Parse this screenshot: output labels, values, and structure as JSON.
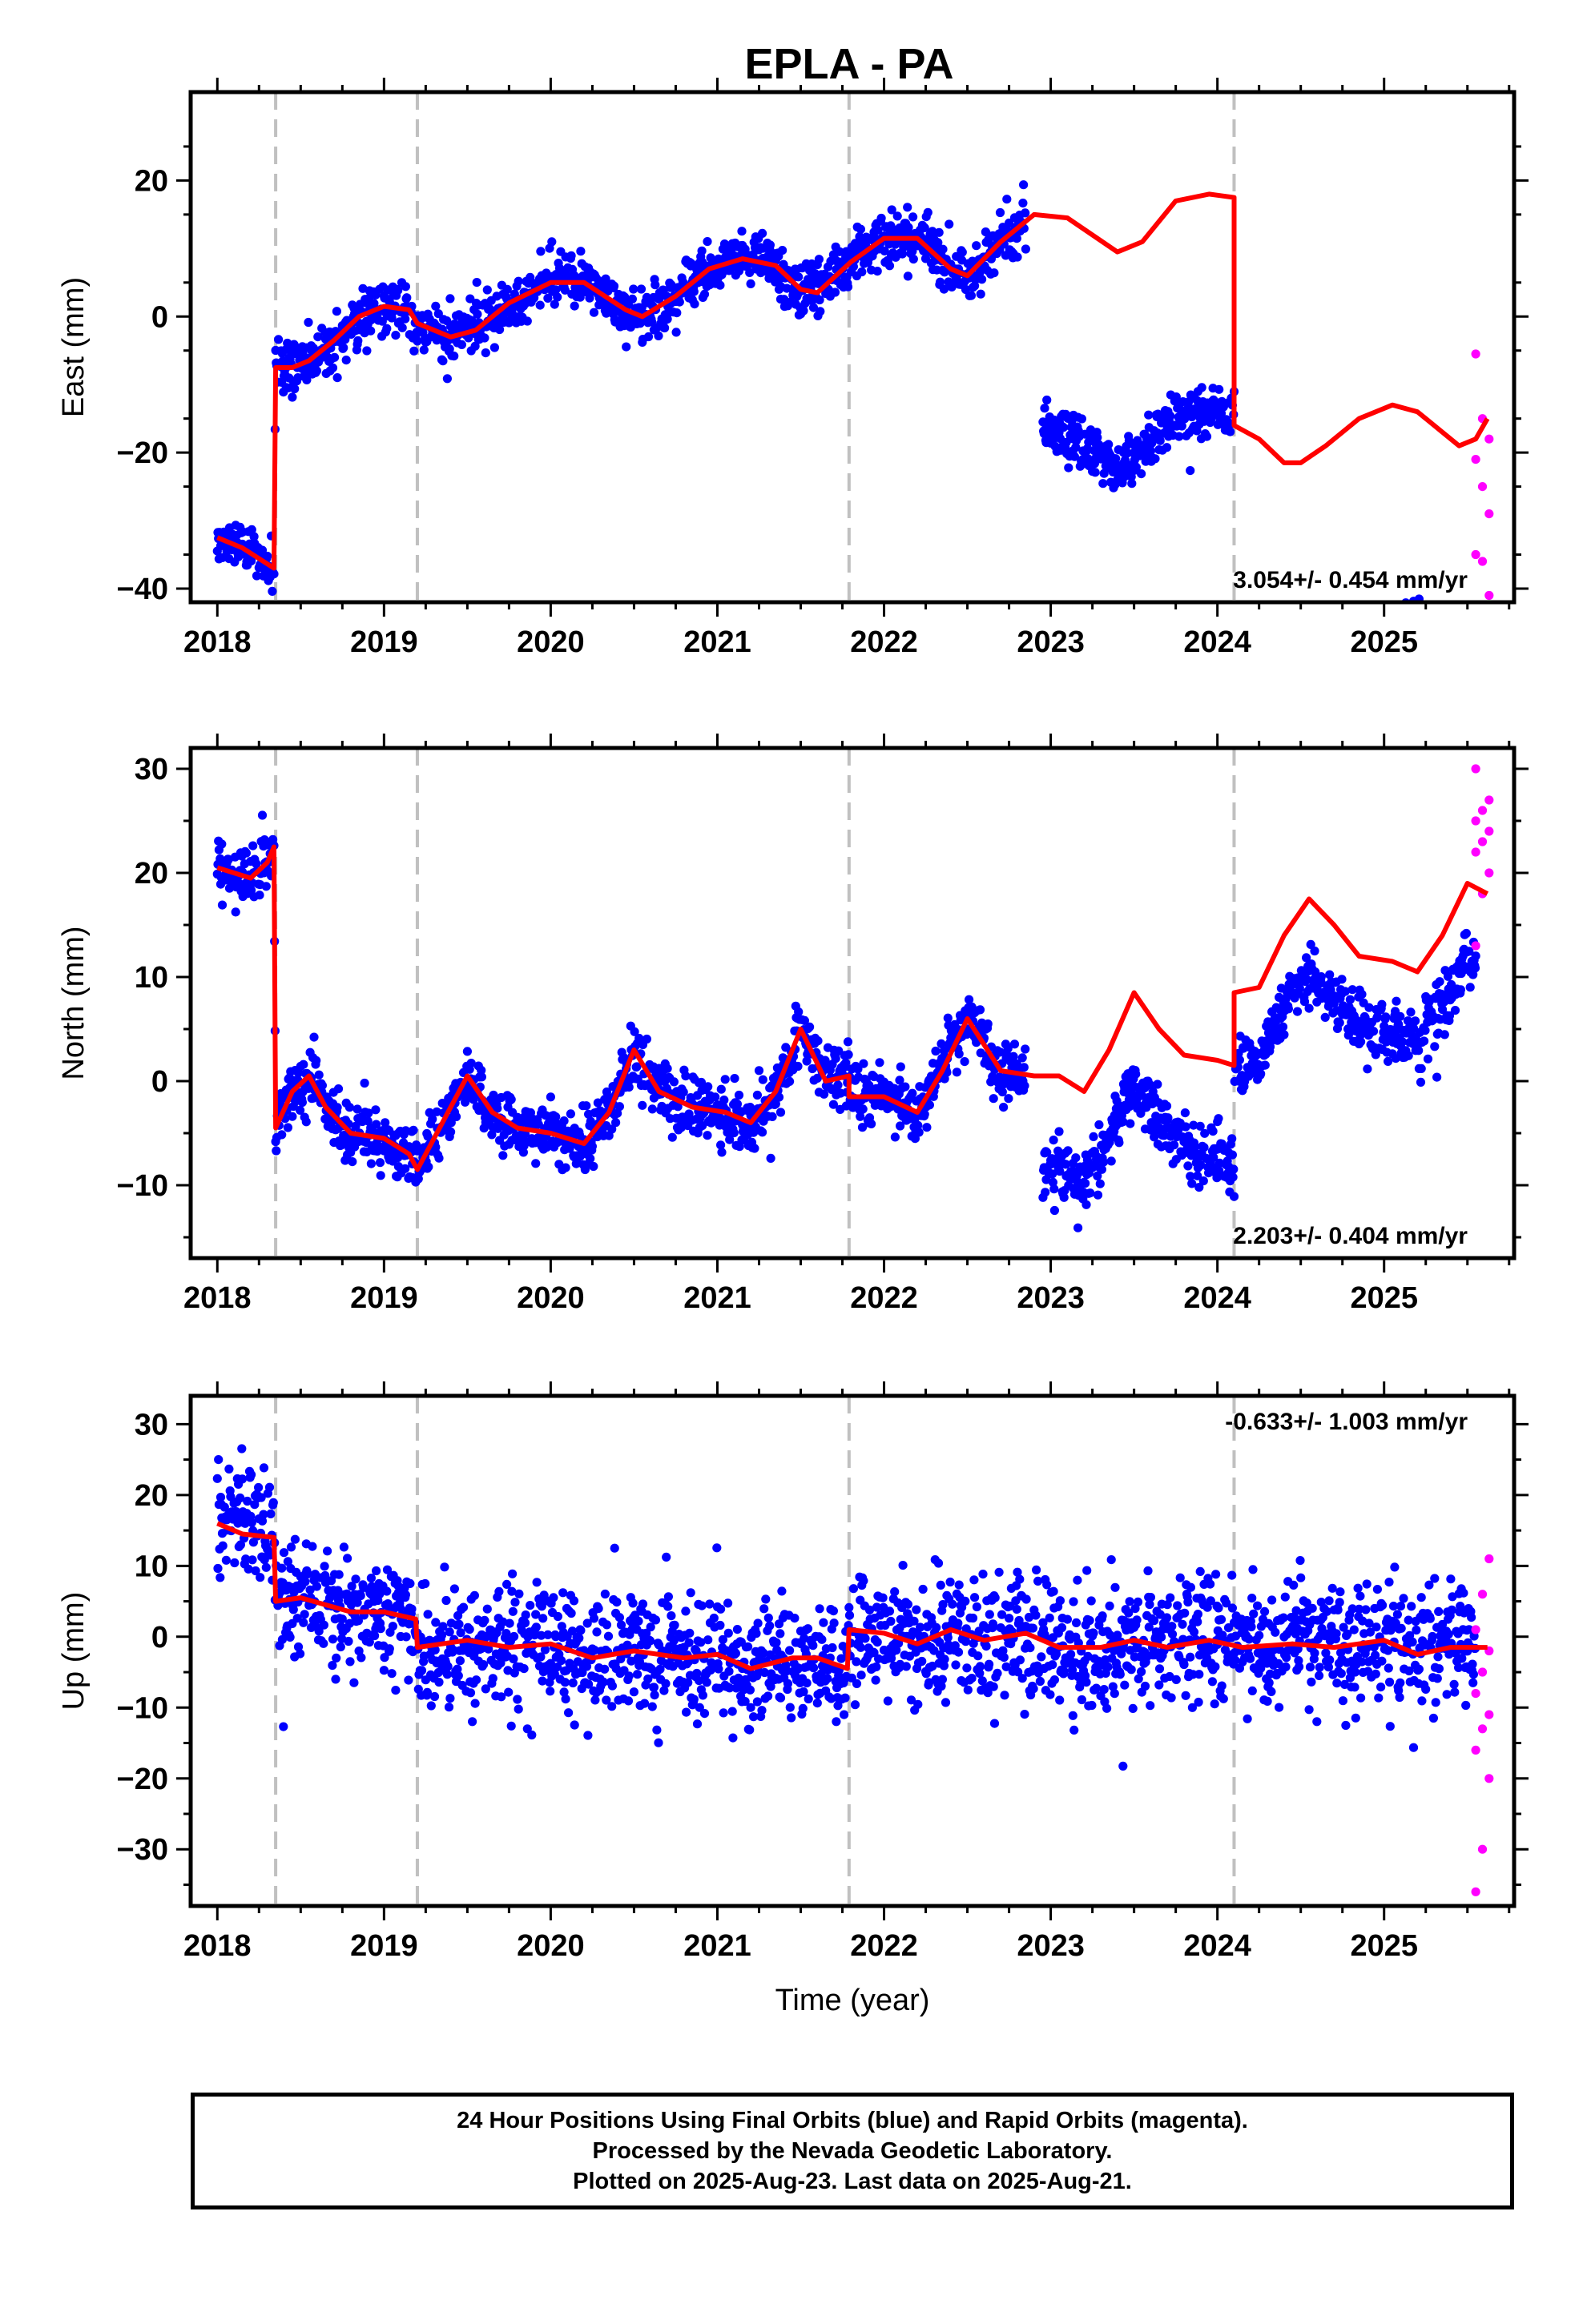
{
  "chart_data": {
    "type": "scatter",
    "title": "EPLA - PA",
    "xlabel": "Time (year)",
    "x_ticks": [
      2018,
      2019,
      2020,
      2021,
      2022,
      2023,
      2024,
      2025
    ],
    "xlim": [
      2017.84,
      2025.78
    ],
    "breaks": [
      2018.35,
      2019.2,
      2021.79,
      2024.1
    ],
    "last_final": 2025.55,
    "last_rapid": 2025.63,
    "colors": {
      "final": "#0000ff",
      "rapid": "#ff00ff",
      "model": "#ff0000",
      "breaks": "#c0c0c0"
    },
    "series_legend": [
      "Final Orbits (blue)",
      "Rapid Orbits (magenta)"
    ],
    "panels": [
      {
        "id": "east",
        "ylabel": "East (mm)",
        "ylim": [
          -42,
          33
        ],
        "y_ticks": [
          -40,
          -20,
          0,
          20
        ],
        "rate": "3.054+/- 0.454 mm/yr",
        "rate_pos": "bottom-right",
        "noise": 1.9,
        "gap": [
          2022.85,
          2022.95
        ],
        "data_offset": [
          [
            2022.95,
            -32
          ]
        ],
        "model": [
          [
            2018.0,
            -32.5
          ],
          [
            2018.15,
            -34
          ],
          [
            2018.34,
            -37
          ],
          [
            2018.35,
            -7.5
          ],
          [
            2018.45,
            -7.5
          ],
          [
            2018.55,
            -6.5
          ],
          [
            2018.7,
            -3.5
          ],
          [
            2018.85,
            0
          ],
          [
            2019.0,
            1.5
          ],
          [
            2019.15,
            1
          ],
          [
            2019.2,
            -1
          ],
          [
            2019.4,
            -3
          ],
          [
            2019.55,
            -2
          ],
          [
            2019.75,
            2
          ],
          [
            2020.0,
            5
          ],
          [
            2020.2,
            5
          ],
          [
            2020.45,
            1
          ],
          [
            2020.55,
            0
          ],
          [
            2020.75,
            3
          ],
          [
            2020.95,
            7
          ],
          [
            2021.15,
            8.5
          ],
          [
            2021.35,
            7.5
          ],
          [
            2021.5,
            4
          ],
          [
            2021.6,
            3.5
          ],
          [
            2021.8,
            8
          ],
          [
            2022.0,
            11.5
          ],
          [
            2022.2,
            11.5
          ],
          [
            2022.4,
            7
          ],
          [
            2022.5,
            6
          ],
          [
            2022.7,
            11
          ],
          [
            2022.9,
            15
          ],
          [
            2023.1,
            14.5
          ],
          [
            2023.25,
            12
          ],
          [
            2023.4,
            9.5
          ],
          [
            2023.55,
            11
          ],
          [
            2023.75,
            17
          ],
          [
            2023.95,
            18
          ],
          [
            2024.1,
            17.5
          ],
          [
            2024.1,
            -16
          ],
          [
            2024.25,
            -18
          ],
          [
            2024.4,
            -21.5
          ],
          [
            2024.5,
            -21.5
          ],
          [
            2024.65,
            -19
          ],
          [
            2024.85,
            -15
          ],
          [
            2025.05,
            -13
          ],
          [
            2025.2,
            -14
          ],
          [
            2025.35,
            -17
          ],
          [
            2025.45,
            -19
          ],
          [
            2025.55,
            -18
          ],
          [
            2025.62,
            -15
          ]
        ],
        "rapid_values": [
          -5.5,
          -15,
          -18,
          -21,
          -25,
          -29,
          -35,
          -36,
          -41
        ]
      },
      {
        "id": "north",
        "ylabel": "North (mm)",
        "ylim": [
          -17,
          32
        ],
        "y_ticks": [
          -10,
          0,
          10,
          20,
          30
        ],
        "rate": "2.203+/- 0.404 mm/yr",
        "rate_pos": "bottom-right",
        "noise": 1.4,
        "gap": [
          2022.85,
          2022.95
        ],
        "data_offset": [
          [
            2022.95,
            -9
          ],
          [
            2024.1,
            -7
          ]
        ],
        "model": [
          [
            2018.0,
            20.5
          ],
          [
            2018.1,
            20
          ],
          [
            2018.2,
            19.5
          ],
          [
            2018.3,
            21
          ],
          [
            2018.34,
            22.5
          ],
          [
            2018.35,
            -4.5
          ],
          [
            2018.45,
            -1
          ],
          [
            2018.55,
            0.5
          ],
          [
            2018.65,
            -2.5
          ],
          [
            2018.8,
            -5
          ],
          [
            2019.0,
            -5.5
          ],
          [
            2019.15,
            -7
          ],
          [
            2019.2,
            -8.5
          ],
          [
            2019.35,
            -4
          ],
          [
            2019.5,
            0.5
          ],
          [
            2019.65,
            -3
          ],
          [
            2019.8,
            -4.5
          ],
          [
            2020.0,
            -5
          ],
          [
            2020.2,
            -6
          ],
          [
            2020.35,
            -3
          ],
          [
            2020.5,
            3
          ],
          [
            2020.65,
            -1
          ],
          [
            2020.85,
            -2.5
          ],
          [
            2021.05,
            -3
          ],
          [
            2021.2,
            -4
          ],
          [
            2021.35,
            -1
          ],
          [
            2021.5,
            5
          ],
          [
            2021.65,
            0
          ],
          [
            2021.79,
            0.5
          ],
          [
            2021.79,
            -1.5
          ],
          [
            2022.0,
            -1.5
          ],
          [
            2022.2,
            -3
          ],
          [
            2022.35,
            1
          ],
          [
            2022.5,
            6
          ],
          [
            2022.7,
            1
          ],
          [
            2022.9,
            0.5
          ],
          [
            2023.05,
            0.5
          ],
          [
            2023.2,
            -1
          ],
          [
            2023.35,
            3
          ],
          [
            2023.5,
            8.5
          ],
          [
            2023.65,
            5
          ],
          [
            2023.8,
            2.5
          ],
          [
            2024.0,
            2
          ],
          [
            2024.1,
            1.5
          ],
          [
            2024.1,
            8.5
          ],
          [
            2024.25,
            9
          ],
          [
            2024.4,
            14
          ],
          [
            2024.55,
            17.5
          ],
          [
            2024.7,
            15
          ],
          [
            2024.85,
            12
          ],
          [
            2025.05,
            11.5
          ],
          [
            2025.2,
            10.5
          ],
          [
            2025.35,
            14
          ],
          [
            2025.5,
            19
          ],
          [
            2025.62,
            18
          ]
        ],
        "rapid_values": [
          13,
          18,
          20,
          22,
          23,
          24,
          25,
          26,
          27,
          30
        ]
      },
      {
        "id": "up",
        "ylabel": "Up (mm)",
        "ylim": [
          -38,
          34
        ],
        "y_ticks": [
          -30,
          -20,
          -10,
          0,
          10,
          20,
          30
        ],
        "rate": "-0.633+/- 1.003 mm/yr",
        "rate_pos": "top-right",
        "noise": 4.2,
        "gap": [
          0,
          0
        ],
        "data_offset": [],
        "model": [
          [
            2018.0,
            16
          ],
          [
            2018.15,
            14.5
          ],
          [
            2018.34,
            14
          ],
          [
            2018.35,
            5
          ],
          [
            2018.5,
            5.5
          ],
          [
            2018.8,
            3.5
          ],
          [
            2019.0,
            3.5
          ],
          [
            2019.19,
            2.5
          ],
          [
            2019.2,
            -1.5
          ],
          [
            2019.5,
            -0.5
          ],
          [
            2019.75,
            -1.5
          ],
          [
            2020.0,
            -1
          ],
          [
            2020.25,
            -3
          ],
          [
            2020.5,
            -2
          ],
          [
            2020.8,
            -3
          ],
          [
            2021.0,
            -2.5
          ],
          [
            2021.2,
            -4.5
          ],
          [
            2021.45,
            -3
          ],
          [
            2021.6,
            -3
          ],
          [
            2021.78,
            -4.5
          ],
          [
            2021.79,
            1
          ],
          [
            2022.0,
            0.5
          ],
          [
            2022.2,
            -1
          ],
          [
            2022.4,
            1
          ],
          [
            2022.6,
            -0.5
          ],
          [
            2022.85,
            0.5
          ],
          [
            2023.05,
            -1.5
          ],
          [
            2023.3,
            -1.5
          ],
          [
            2023.5,
            -0.5
          ],
          [
            2023.7,
            -1.5
          ],
          [
            2023.95,
            -0.5
          ],
          [
            2024.15,
            -1.5
          ],
          [
            2024.45,
            -1
          ],
          [
            2024.7,
            -1.5
          ],
          [
            2025.0,
            -0.5
          ],
          [
            2025.2,
            -2.5
          ],
          [
            2025.4,
            -1.5
          ],
          [
            2025.62,
            -1.5
          ]
        ],
        "rapid_values": [
          -36,
          -30,
          -20,
          -16,
          -13,
          -11,
          -8,
          -5,
          -2,
          1,
          6,
          11
        ]
      }
    ],
    "footer": [
      "24 Hour Positions Using Final Orbits (blue) and Rapid Orbits (magenta).",
      "Processed by the Nevada Geodetic Laboratory.",
      "Plotted on 2025-Aug-23. Last data on 2025-Aug-21."
    ]
  }
}
